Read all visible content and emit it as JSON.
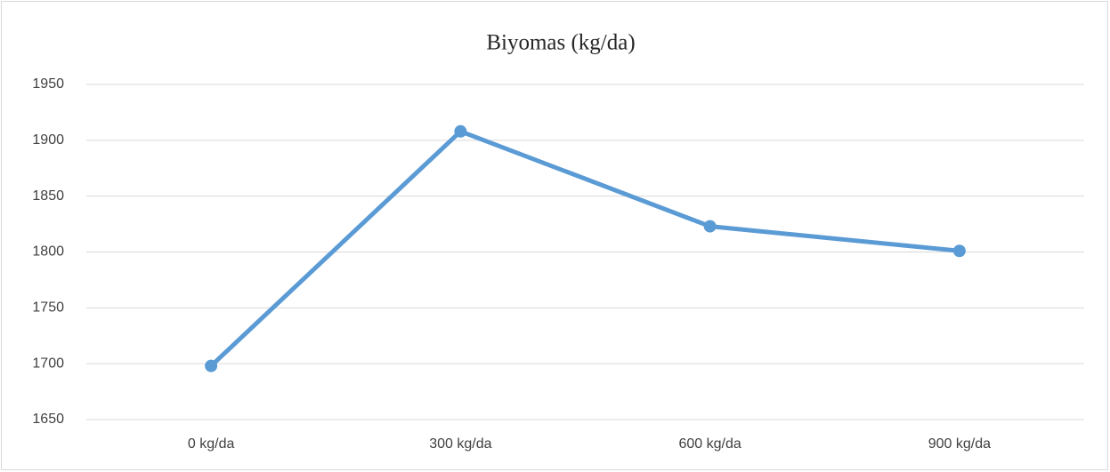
{
  "chart_data": {
    "type": "line",
    "title": "Biyomas (kg/da)",
    "categories": [
      "0 kg/da",
      "300 kg/da",
      "600 kg/da",
      "900 kg/da"
    ],
    "series": [
      {
        "name": "Biyomas",
        "color": "#5b9bd5",
        "values": [
          1698,
          1908,
          1823,
          1801
        ]
      }
    ],
    "ylim": [
      1650,
      1950
    ],
    "yticks": [
      1650,
      1700,
      1750,
      1800,
      1850,
      1900,
      1950
    ],
    "grid": true
  }
}
